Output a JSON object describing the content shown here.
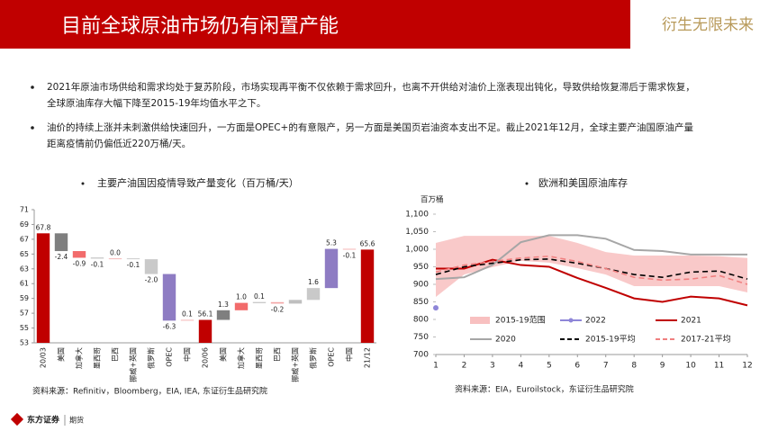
{
  "header": {
    "title": "目前全球原油市场仍有闲置产能",
    "slogan": "衍生无限未来"
  },
  "bullets": [
    [
      "2021年原油市场供给和需求均处于复苏阶段，市场实现再平衡不仅依赖于需求回升，也离不开供给对油价上涨表现出钝化，导致供给恢复滞后于需求恢复，",
      "全球原油库存大幅下降至2015-19年均值水平之下。"
    ],
    [
      "油价的持续上涨并未刺激供给快速回升，一方面是OPEC+的有意限产，另一方面是美国页岩油资本支出不足。截止2021年12月，全球主要产油国原油产量",
      "距离疫情前仍偏低近220万桶/天。"
    ]
  ],
  "chart_data": [
    {
      "type": "waterfall",
      "title": "主要产油国因疫情导致产量变化（百万桶/天）",
      "categories": [
        "20/03",
        "美国",
        "加拿大",
        "墨西哥",
        "巴西",
        "挪威+英国",
        "俄罗斯",
        "OPEC",
        "中国",
        "20/06",
        "美国",
        "加拿大",
        "墨西哥",
        "巴西",
        "挪威+英国",
        "俄罗斯",
        "OPEC",
        "中国",
        "21/12"
      ],
      "values": [
        67.8,
        -2.4,
        -0.9,
        -0.1,
        0.0,
        -0.1,
        -2.0,
        -6.3,
        0.1,
        56.1,
        1.3,
        1.0,
        0.1,
        -0.2,
        0.5,
        1.6,
        5.3,
        -0.1,
        65.6
      ],
      "value_labels": [
        "67.8",
        "-2.4",
        "-0.9",
        "-0.1",
        "0.0",
        "-0.1",
        "-2.0",
        "-6.3",
        "0.1",
        "56.1",
        "1.3",
        "1.0",
        "0.1",
        "-0.2",
        null,
        "1.6",
        "5.3",
        "-0.1",
        "65.6"
      ],
      "totals": [
        0,
        9,
        18
      ],
      "colors": [
        "#c00000",
        "#7f7f7f",
        "#f26b6b",
        "#a6a6a6",
        "#f4a6a6",
        "#bfbfbf",
        "#c9c9c9",
        "#8e7cc3",
        "#f4a6a6",
        "#c00000",
        "#7f7f7f",
        "#f26b6b",
        "#a6a6a6",
        "#f4a6a6",
        "#bfbfbf",
        "#c9c9c9",
        "#8e7cc3",
        "#f4a6a6",
        "#c00000"
      ],
      "ylim": [
        53,
        71
      ],
      "yticks": [
        53,
        55,
        57,
        59,
        61,
        63,
        65,
        67,
        69,
        71
      ],
      "source": "资料来源：Refinitiv，Bloomberg，EIA, IEA, 东证衍生品研究院"
    },
    {
      "type": "line",
      "title": "欧洲和美国原油库存",
      "y_label": "百万桶",
      "x": [
        1,
        2,
        3,
        4,
        5,
        6,
        7,
        8,
        9,
        10,
        11,
        12
      ],
      "series": [
        {
          "name": "2015-19范围",
          "color": "#f8c0c0",
          "kind": "band",
          "values": [
            1018,
            1038,
            1038,
            1038,
            1038,
            1018,
            992,
            982,
            982,
            982,
            980,
            975
          ],
          "lower": [
            864,
            928,
            949,
            967,
            962,
            946,
            928,
            895,
            895,
            895,
            895,
            877
          ]
        },
        {
          "name": "2022",
          "color": "#8e86d8",
          "values": [
            833,
            null,
            null,
            null,
            null,
            null,
            null,
            null,
            null,
            null,
            null,
            null
          ]
        },
        {
          "name": "2021",
          "color": "#c00000",
          "values": [
            945,
            945,
            970,
            955,
            950,
            918,
            890,
            860,
            850,
            865,
            860,
            840
          ]
        },
        {
          "name": "2020",
          "color": "#a6a6a6",
          "values": [
            915,
            920,
            955,
            1020,
            1040,
            1040,
            1030,
            998,
            995,
            985,
            985,
            985
          ]
        },
        {
          "name": "2015-19平均",
          "color": "#000000",
          "dash": true,
          "values": [
            928,
            950,
            960,
            970,
            972,
            960,
            945,
            928,
            920,
            935,
            938,
            915
          ]
        },
        {
          "name": "2017-21平均",
          "color": "#f08080",
          "dash": true,
          "values": [
            935,
            955,
            965,
            975,
            980,
            965,
            945,
            920,
            912,
            915,
            925,
            900
          ]
        }
      ],
      "xlim": [
        1,
        12
      ],
      "xticks": [
        1,
        2,
        3,
        4,
        5,
        6,
        7,
        8,
        9,
        10,
        11,
        12
      ],
      "ylim": [
        700,
        1100
      ],
      "yticks": [
        700,
        750,
        800,
        850,
        900,
        950,
        {
          "value": 1000,
          "label": "1,000"
        },
        {
          "value": 1050,
          "label": "1,050"
        },
        {
          "value": 1100,
          "label": "1,100"
        }
      ],
      "legend": "bottom-inside",
      "source": "资料来源：EIA，Euroilstock，东证衍生品研究院"
    }
  ],
  "footer": {
    "brand": "东方证券",
    "sub": "期货"
  }
}
